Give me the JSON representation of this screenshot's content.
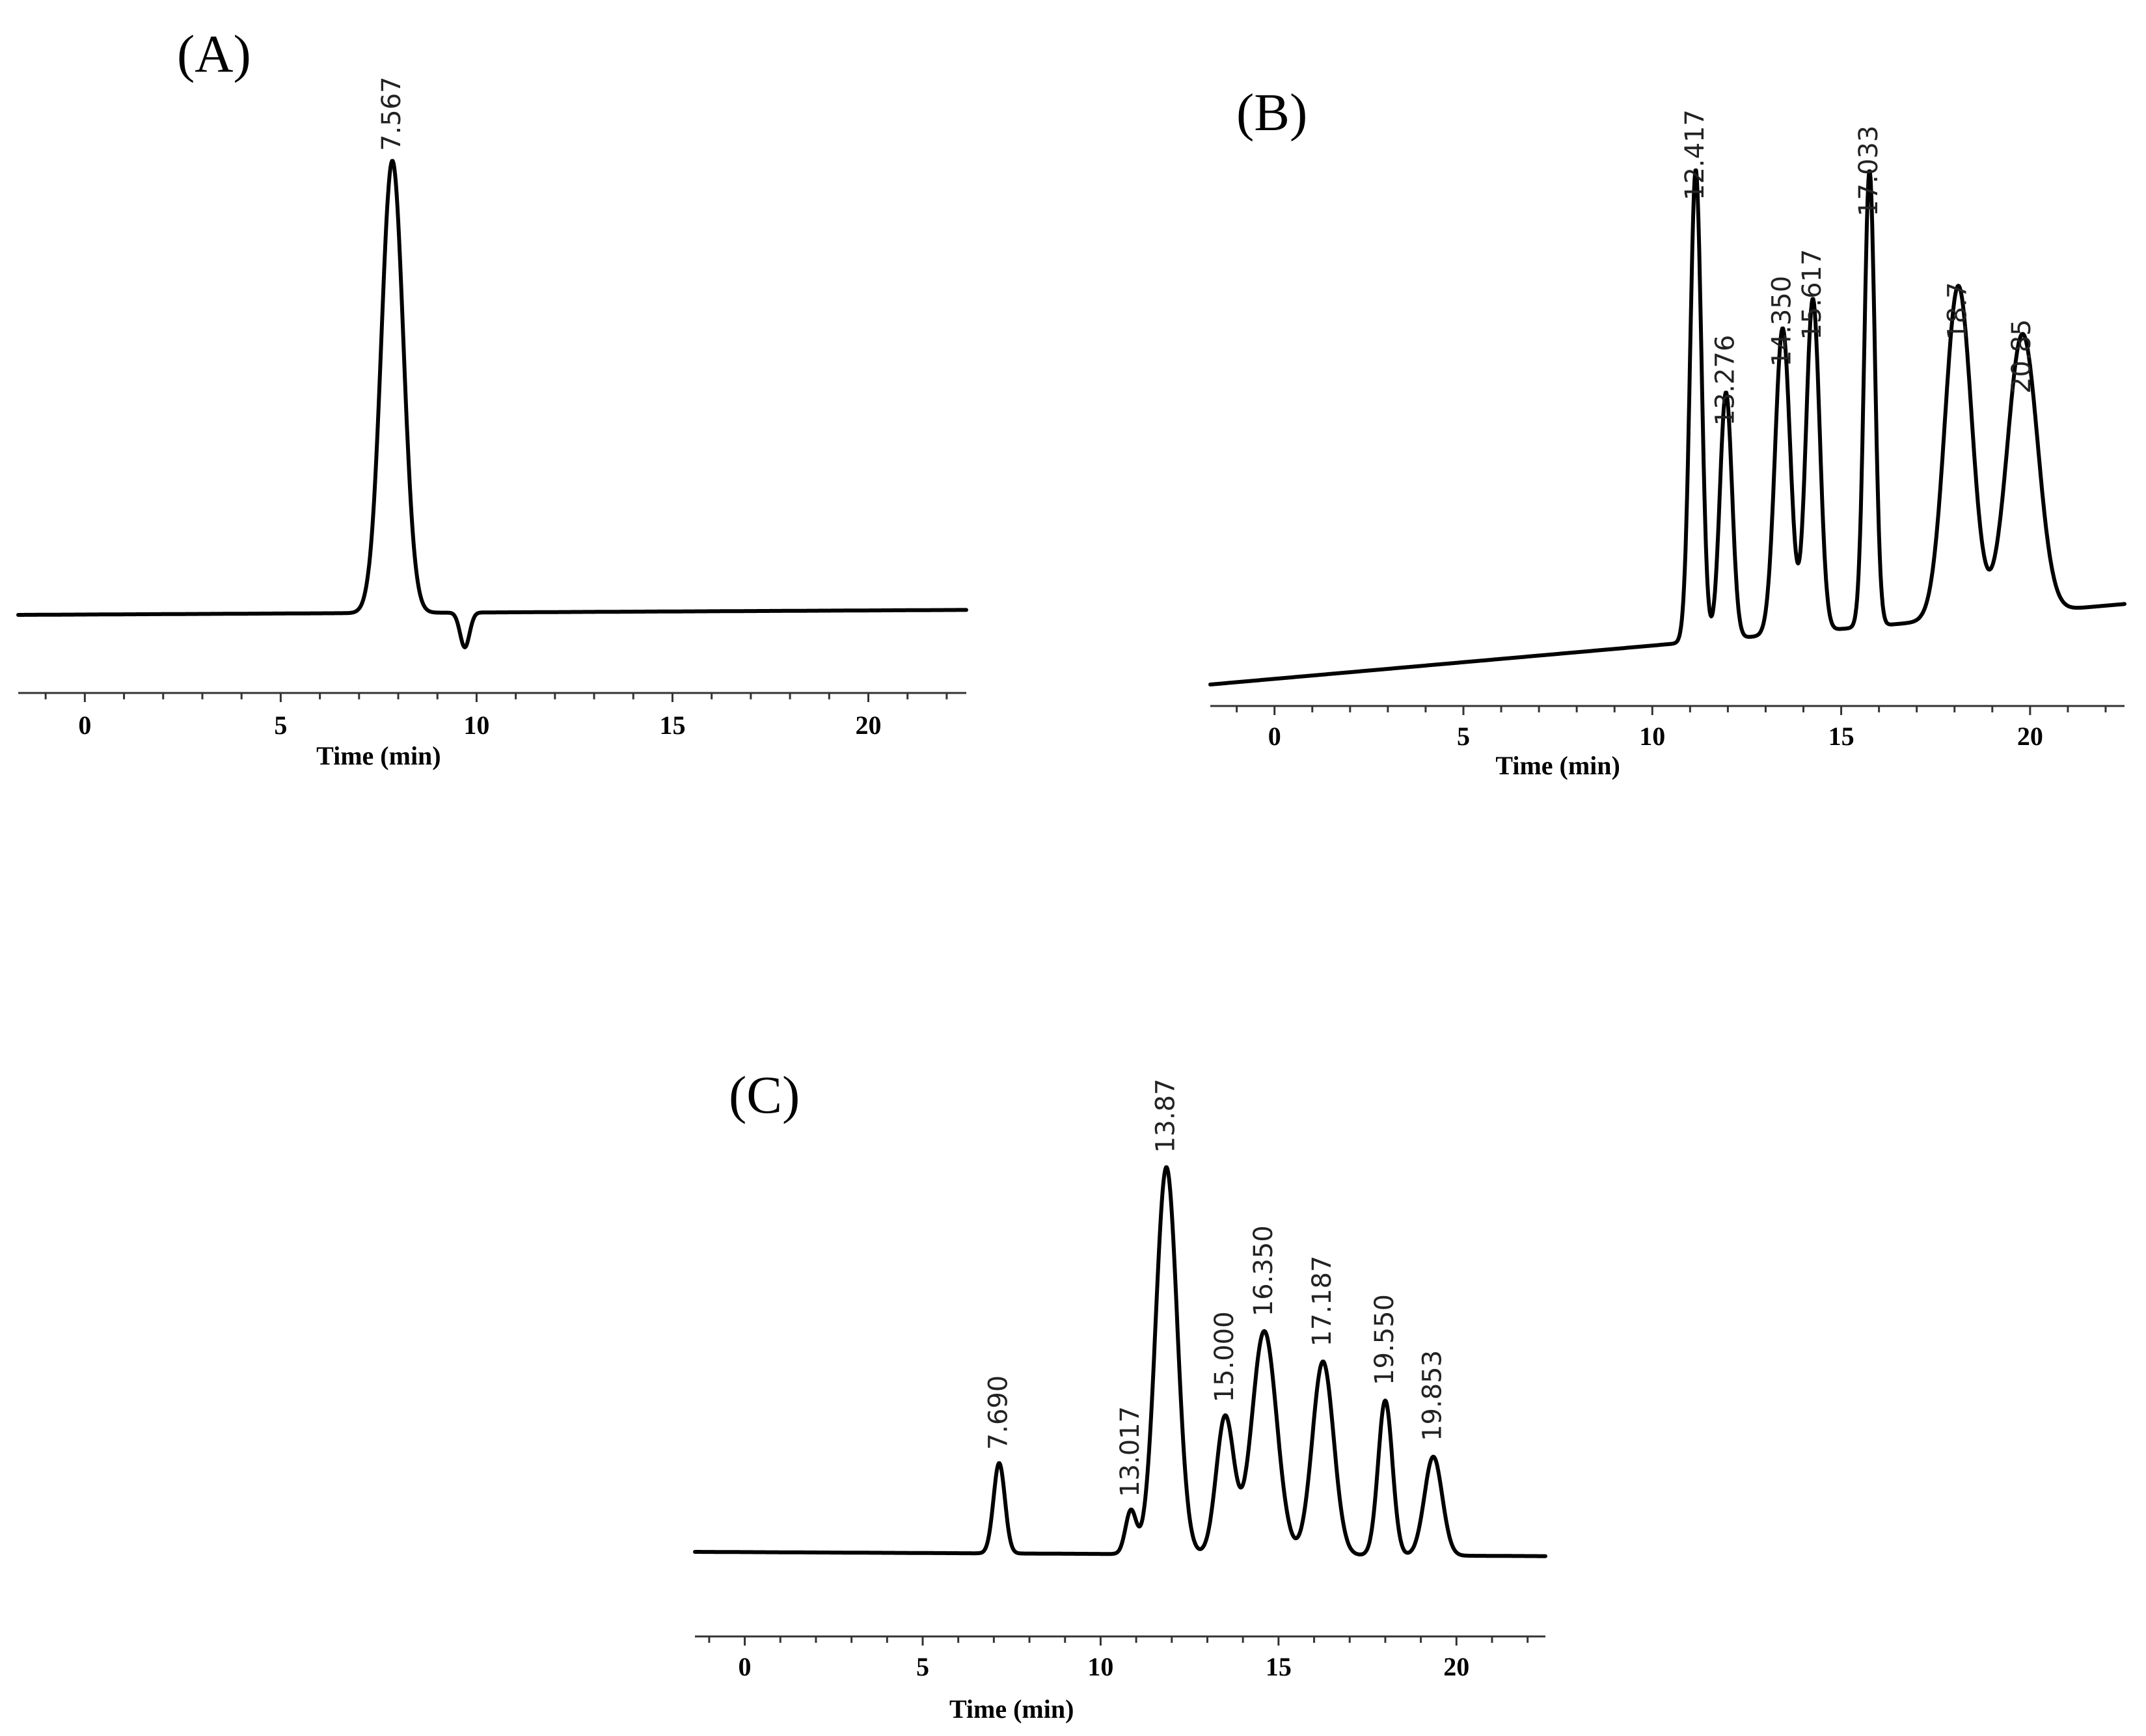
{
  "chart_data": [
    {
      "type": "line",
      "panel_label": "(A)",
      "xlabel": "Time (min)",
      "ylabel": "",
      "xlim": [
        -1.7,
        22.5
      ],
      "xticks": [
        0,
        5,
        10,
        15,
        20
      ],
      "tick_labels": [
        "0",
        "5",
        "10",
        "15",
        "20"
      ],
      "baseline": 0.09,
      "baseline_end": 0.1,
      "ylim": [
        0,
        1.1
      ],
      "peaks": [
        {
          "label": "7.567",
          "x": 7.85,
          "height": 1.0,
          "width": 0.28
        },
        {
          "label": "",
          "x": 9.7,
          "height": 0.02,
          "width": 0.12
        }
      ]
    },
    {
      "type": "line",
      "panel_label": "(B)",
      "xlabel": "Time (min)",
      "ylabel": "",
      "xlim": [
        -1.7,
        22.5
      ],
      "xticks": [
        0,
        5,
        10,
        15,
        20
      ],
      "tick_labels": [
        "0",
        "5",
        "10",
        "15",
        "20"
      ],
      "baseline": 0.12,
      "baseline_end": 0.27,
      "ylim": [
        0,
        1.1
      ],
      "peaks": [
        {
          "label": "12.417",
          "x": 11.15,
          "height": 1.0,
          "width": 0.15
        },
        {
          "label": "13.276",
          "x": 11.95,
          "height": 0.58,
          "width": 0.16
        },
        {
          "label": "14.350",
          "x": 13.45,
          "height": 0.69,
          "width": 0.2
        },
        {
          "label": "15.617",
          "x": 14.25,
          "height": 0.74,
          "width": 0.18
        },
        {
          "label": "17.033",
          "x": 15.75,
          "height": 0.97,
          "width": 0.14
        },
        {
          "label": "18.7",
          "x": 18.1,
          "height": 0.74,
          "width": 0.35
        },
        {
          "label": "20.85",
          "x": 19.8,
          "height": 0.64,
          "width": 0.4
        }
      ]
    },
    {
      "type": "line",
      "panel_label": "(C)",
      "xlabel": "Time (min)",
      "ylabel": "",
      "xlim": [
        -1.4,
        22.5
      ],
      "xticks": [
        0,
        5,
        10,
        15,
        20
      ],
      "tick_labels": [
        "0",
        "5",
        "10",
        "15",
        "20"
      ],
      "baseline": 0.1,
      "baseline_end": 0.09,
      "ylim": [
        0,
        1.1
      ],
      "peaks": [
        {
          "label": "7.690",
          "x": 7.15,
          "height": 0.31,
          "width": 0.16
        },
        {
          "label": "13.017",
          "x": 10.85,
          "height": 0.2,
          "width": 0.15
        },
        {
          "label": "13.87",
          "x": 11.85,
          "height": 1.0,
          "width": 0.3
        },
        {
          "label": "15.000",
          "x": 13.5,
          "height": 0.42,
          "width": 0.25
        },
        {
          "label": "16.350",
          "x": 14.6,
          "height": 0.62,
          "width": 0.35
        },
        {
          "label": "17.187",
          "x": 16.25,
          "height": 0.55,
          "width": 0.3
        },
        {
          "label": "19.550",
          "x": 18.0,
          "height": 0.46,
          "width": 0.2
        },
        {
          "label": "19.853",
          "x": 19.35,
          "height": 0.33,
          "width": 0.25
        }
      ]
    }
  ]
}
